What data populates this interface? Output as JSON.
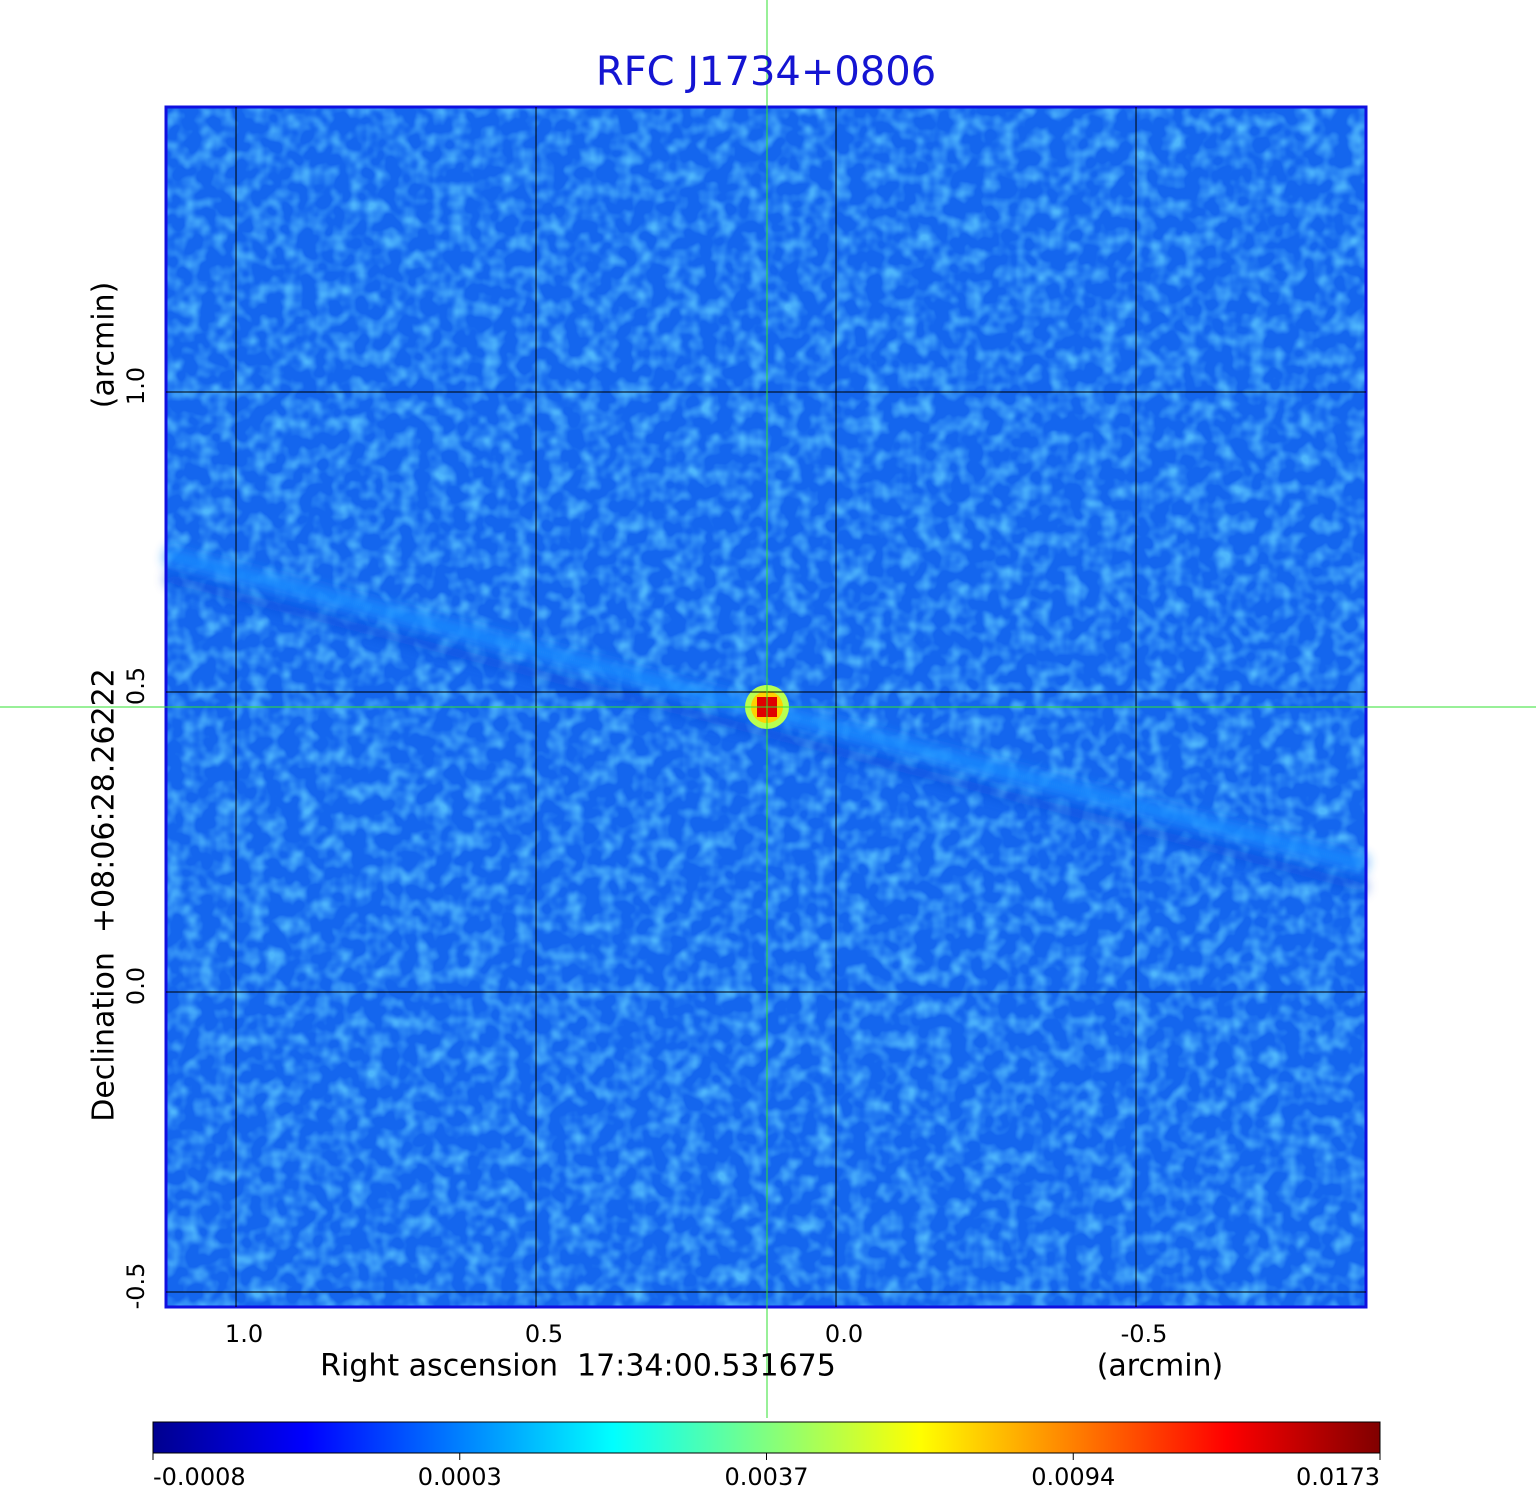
{
  "chart_data": {
    "type": "image",
    "title": "RFC J1734+0806",
    "x_label": "Right ascension  17:34:00.531675",
    "x_unit": "(arcmin)",
    "y_label": "Declination  +08:06:28.26222",
    "y_unit": "(arcmin)",
    "xlim": [
      1.1167,
      -0.8833
    ],
    "ylim": [
      -0.525,
      1.475
    ],
    "xticks": [
      {
        "value": 1.0,
        "label": "1.0"
      },
      0.5,
      {
        "value": 0.0,
        "label": "0.0"
      },
      -0.5
    ],
    "yticks": [
      -0.5,
      {
        "value": 0.0,
        "label": "0.0"
      },
      0.5,
      {
        "value": 1.0,
        "label": "1.0"
      }
    ],
    "grid": true,
    "colorbar": {
      "ticks": [
        -0.0008,
        0.0003,
        0.0037,
        0.0094,
        0.0173
      ],
      "colors": [
        "#00008f",
        "#0000ff",
        "#0080ff",
        "#00ffff",
        "#80ff80",
        "#ffff00",
        "#ff8000",
        "#ff0000",
        "#800000"
      ]
    }
  }
}
